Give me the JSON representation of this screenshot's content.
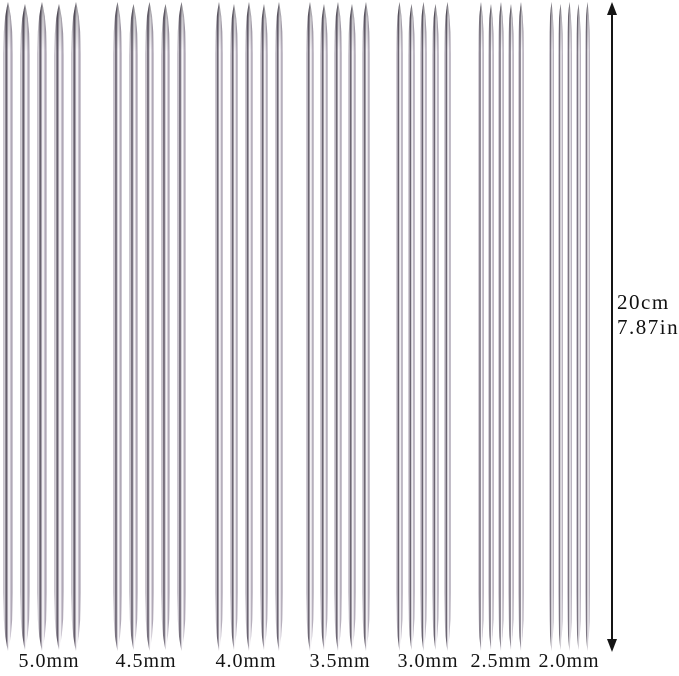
{
  "image": {
    "description": "Set of stainless steel double pointed knitting needles in seven sizes with length dimension arrow",
    "background_color": "#ffffff"
  },
  "needles": {
    "groups": [
      {
        "size_label": "5.0mm",
        "needle_count": 5
      },
      {
        "size_label": "4.5mm",
        "needle_count": 5
      },
      {
        "size_label": "4.0mm",
        "needle_count": 5
      },
      {
        "size_label": "3.5mm",
        "needle_count": 5
      },
      {
        "size_label": "3.0mm",
        "needle_count": 5
      },
      {
        "size_label": "2.5mm",
        "needle_count": 5
      },
      {
        "size_label": "2.0mm",
        "needle_count": 5
      }
    ],
    "material_colors": {
      "edge": "#b6afbb",
      "dark_stripe": "#544e5a",
      "highlight": "#fefdfe",
      "mid": "#a79fae",
      "tip_shadow": "#232028"
    }
  },
  "dimension": {
    "length_cm": "20cm",
    "length_in": "7.87in",
    "arrow_color": "#151515",
    "text_color": "#111111"
  }
}
